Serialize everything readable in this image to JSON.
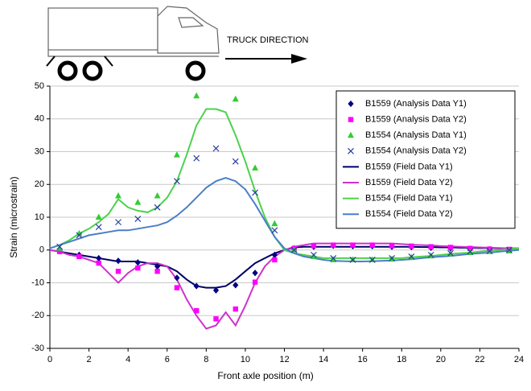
{
  "chart_data": {
    "type": "line",
    "annotation": "TRUCK DIRECTION",
    "x_label": "Front axle position (m)",
    "y_label": "Strain (microstrain)",
    "xlim": [
      0,
      24
    ],
    "xticks": [
      0,
      2,
      4,
      6,
      8,
      10,
      12,
      14,
      16,
      18,
      20,
      22,
      24
    ],
    "ylim": [
      -30,
      50
    ],
    "yticks": [
      -30,
      -20,
      -10,
      0,
      10,
      20,
      30,
      40,
      50
    ],
    "grid": true,
    "legend": "upper right",
    "series": [
      {
        "name": "B1559 (Analysis Data Y1)",
        "mode": "markers",
        "marker": "diamond",
        "color": "#000080",
        "x": [
          0.5,
          1.5,
          2.5,
          3.5,
          4.5,
          5.5,
          6.5,
          7.5,
          8.5,
          9.5,
          10.5,
          11.5,
          12.5,
          13.5,
          14.5,
          15.5,
          16.5,
          17.5,
          18.5,
          19.5,
          20.5,
          21.5,
          22.5,
          23.5
        ],
        "values": [
          -0.3,
          -1.5,
          -2.5,
          -3.3,
          -3.8,
          -5,
          -8.5,
          -11,
          -12.3,
          -10.7,
          -7,
          -1.5,
          0.5,
          1,
          1.3,
          1.2,
          1.2,
          1,
          0.9,
          0.7,
          0.5,
          0.3,
          0.2,
          0
        ]
      },
      {
        "name": "B1559 (Analysis Data Y2)",
        "mode": "markers",
        "marker": "square",
        "color": "#ff00ff",
        "x": [
          0.5,
          1.5,
          2.5,
          3.5,
          4.5,
          5.5,
          6.5,
          7.5,
          8.5,
          9.5,
          10.5,
          11.5,
          12.5,
          13.5,
          14.5,
          15.5,
          16.5,
          17.5,
          18.5,
          19.5,
          20.5,
          21.5,
          22.5,
          23.5
        ],
        "values": [
          -0.5,
          -2,
          -4,
          -6.5,
          -5.5,
          -6.5,
          -11.5,
          -18.5,
          -21,
          -18,
          -9.8,
          -3,
          0.5,
          1.3,
          1.5,
          1.5,
          1.5,
          1.3,
          1.2,
          1,
          0.8,
          0.5,
          0.3,
          0.2
        ]
      },
      {
        "name": "B1554 (Analysis Data Y1)",
        "mode": "markers",
        "marker": "triangle",
        "color": "#33cc33",
        "x": [
          0.5,
          1.5,
          2.5,
          3.5,
          4.5,
          5.5,
          6.5,
          7.5,
          8.5,
          9.5,
          10.5,
          11.5,
          12.5,
          13.5,
          14.5,
          15.5,
          16.5,
          17.5,
          18.5,
          19.5,
          20.5,
          21.5,
          22.5,
          23.5
        ],
        "values": [
          0.5,
          5,
          10,
          16.5,
          14.5,
          16.5,
          29,
          47,
          null,
          46,
          25,
          8,
          0,
          -2,
          -3,
          -3,
          -3,
          -2.8,
          -2.3,
          -1.8,
          -1.2,
          -0.8,
          -0.5,
          -0.3
        ]
      },
      {
        "name": "B1554 (Analysis Data Y2)",
        "mode": "markers",
        "marker": "x",
        "color": "#2a3f9f",
        "x": [
          0.5,
          1.5,
          2.5,
          3.5,
          4.5,
          5.5,
          6.5,
          7.5,
          8.5,
          9.5,
          10.5,
          11.5,
          12.5,
          13.5,
          14.5,
          15.5,
          16.5,
          17.5,
          18.5,
          19.5,
          20.5,
          21.5,
          22.5,
          23.5
        ],
        "values": [
          1,
          4.5,
          7,
          8.5,
          9.5,
          13,
          21,
          28,
          31,
          27,
          17.5,
          6,
          0,
          -1.5,
          -2.5,
          -3,
          -3,
          -2.5,
          -2,
          -1.5,
          -1,
          -0.5,
          -0.3,
          0
        ]
      },
      {
        "name": "B1559 (Field Data Y1)",
        "mode": "lines",
        "color": "#000066",
        "x": [
          0,
          0.5,
          1,
          1.5,
          2,
          2.5,
          3,
          3.5,
          4,
          4.5,
          5,
          5.5,
          6,
          6.5,
          7,
          7.5,
          8,
          8.5,
          9,
          9.5,
          10,
          10.5,
          11,
          11.5,
          12,
          12.5,
          13,
          13.5,
          14,
          14.5,
          15,
          15.5,
          16,
          16.5,
          17,
          17.5,
          18,
          18.5,
          19,
          19.5,
          20,
          20.5,
          21,
          21.5,
          22,
          22.5,
          23,
          23.5,
          24
        ],
        "values": [
          0,
          -0.5,
          -1,
          -1.5,
          -2,
          -2.5,
          -3,
          -3.5,
          -3.5,
          -3.5,
          -4,
          -4.5,
          -5,
          -6.5,
          -9,
          -11,
          -11.5,
          -11.5,
          -11,
          -9,
          -6.5,
          -4,
          -2.5,
          -1,
          0,
          0.8,
          1,
          1,
          1,
          1,
          1,
          1,
          1,
          1,
          1,
          1,
          1,
          1,
          0.9,
          0.9,
          0.8,
          0.8,
          0.7,
          0.7,
          0.6,
          0.6,
          0.5,
          0.5,
          0.5
        ]
      },
      {
        "name": "B1559 (Field Data Y2)",
        "mode": "lines",
        "color": "#cc33cc",
        "x": [
          0,
          0.5,
          1,
          1.5,
          2,
          2.5,
          3,
          3.5,
          4,
          4.5,
          5,
          5.5,
          6,
          6.5,
          7,
          7.5,
          8,
          8.5,
          9,
          9.5,
          10,
          10.5,
          11,
          11.5,
          12,
          12.5,
          13,
          13.5,
          14,
          14.5,
          15,
          15.5,
          16,
          16.5,
          17,
          17.5,
          18,
          18.5,
          19,
          19.5,
          20,
          20.5,
          21,
          21.5,
          22,
          22.5,
          23,
          23.5,
          24
        ],
        "values": [
          0,
          -0.5,
          -1.5,
          -2,
          -3,
          -4,
          -7,
          -10,
          -7,
          -5,
          -4,
          -4,
          -5,
          -9,
          -15,
          -20,
          -24,
          -23,
          -19,
          -23,
          -17,
          -10,
          -5,
          -2,
          0,
          1,
          1.5,
          2,
          2,
          2,
          2,
          2,
          2,
          2,
          2,
          2,
          1.8,
          1.6,
          1.5,
          1.4,
          1.2,
          1.1,
          1,
          0.9,
          0.8,
          0.7,
          0.6,
          0.5,
          0.5
        ]
      },
      {
        "name": "B1554 (Field Data Y1)",
        "mode": "lines",
        "color": "#4cd24c",
        "x": [
          0,
          0.5,
          1,
          1.5,
          2,
          2.5,
          3,
          3.5,
          4,
          4.5,
          5,
          5.5,
          6,
          6.5,
          7,
          7.5,
          8,
          8.5,
          9,
          9.5,
          10,
          10.5,
          11,
          11.5,
          12,
          12.5,
          13,
          13.5,
          14,
          14.5,
          15,
          15.5,
          16,
          16.5,
          17,
          17.5,
          18,
          18.5,
          19,
          19.5,
          20,
          20.5,
          21,
          21.5,
          22,
          22.5,
          23,
          23.5,
          24
        ],
        "values": [
          0.5,
          1.5,
          3,
          5,
          6.5,
          8.5,
          11,
          15.5,
          13,
          12,
          11.5,
          13,
          16,
          21,
          29,
          38,
          43,
          43,
          42,
          35,
          27,
          18,
          10,
          4,
          0,
          -1,
          -1.5,
          -2,
          -2.5,
          -2.5,
          -2.5,
          -2.5,
          -2.5,
          -2.5,
          -2.5,
          -2.5,
          -2.5,
          -2.2,
          -2,
          -1.8,
          -1.5,
          -1.2,
          -1,
          -0.8,
          -0.5,
          -0.2,
          0,
          0.3,
          0.5
        ]
      },
      {
        "name": "B1554 (Field Data Y2)",
        "mode": "lines",
        "color": "#4a7fc8",
        "x": [
          0,
          0.5,
          1,
          1.5,
          2,
          2.5,
          3,
          3.5,
          4,
          4.5,
          5,
          5.5,
          6,
          6.5,
          7,
          7.5,
          8,
          8.5,
          9,
          9.5,
          10,
          10.5,
          11,
          11.5,
          12,
          12.5,
          13,
          13.5,
          14,
          14.5,
          15,
          15.5,
          16,
          16.5,
          17,
          17.5,
          18,
          18.5,
          19,
          19.5,
          20,
          20.5,
          21,
          21.5,
          22,
          22.5,
          23,
          23.5,
          24
        ],
        "values": [
          0.5,
          1.5,
          2.5,
          3.5,
          4.5,
          5,
          5.5,
          6,
          6,
          6.5,
          7,
          7.5,
          8.5,
          10.5,
          13,
          16,
          19,
          21,
          22,
          21,
          18.5,
          14,
          9,
          4,
          0.5,
          -1,
          -2,
          -2.5,
          -3,
          -3.3,
          -3.4,
          -3.5,
          -3.5,
          -3.4,
          -3.3,
          -3.2,
          -3,
          -2.8,
          -2.5,
          -2.2,
          -2,
          -1.8,
          -1.5,
          -1.2,
          -1,
          -0.8,
          -0.5,
          -0.2,
          0
        ]
      }
    ]
  }
}
